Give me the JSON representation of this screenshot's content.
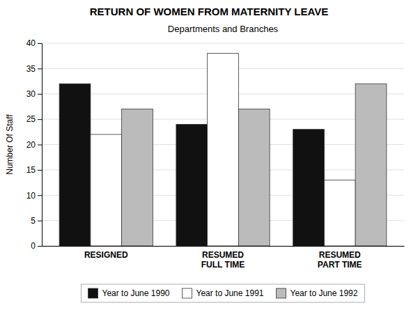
{
  "chart_data": {
    "type": "bar",
    "title": "RETURN OF WOMEN FROM MATERNITY LEAVE",
    "subtitle": "Departments and Branches",
    "ylabel": "Number Of Staff",
    "categories": [
      "RESIGNED",
      "RESUMED\nFULL TIME",
      "RESUMED\nPART TIME"
    ],
    "series": [
      {
        "name": "Year to June 1990",
        "color": "#111111",
        "values": [
          32,
          24,
          23
        ]
      },
      {
        "name": "Year to June 1991",
        "color": "#ffffff",
        "values": [
          22,
          38,
          13
        ]
      },
      {
        "name": "Year to June 1992",
        "color": "#bbbbbb",
        "values": [
          27,
          27,
          32
        ]
      }
    ],
    "ylim": [
      0,
      40
    ],
    "yticks": [
      0,
      5,
      10,
      15,
      20,
      25,
      30,
      35,
      40
    ],
    "grid": true,
    "legend": "bottom"
  }
}
